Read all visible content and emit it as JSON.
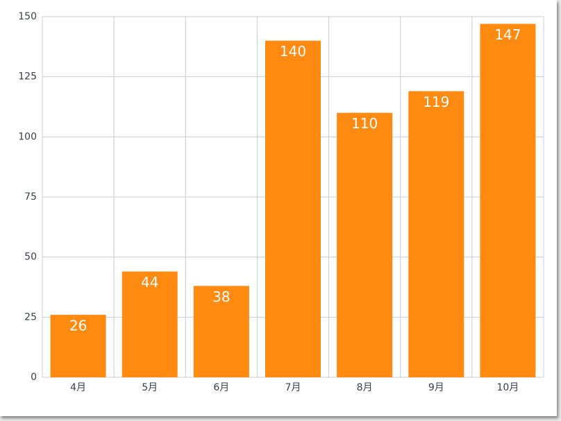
{
  "chart_data": {
    "type": "bar",
    "categories": [
      "4月",
      "5月",
      "6月",
      "7月",
      "8月",
      "9月",
      "10月"
    ],
    "values": [
      26,
      44,
      38,
      140,
      110,
      119,
      147
    ],
    "color": "#ff8a12",
    "ylim": [
      0,
      150
    ],
    "yticks": [
      0,
      25,
      50,
      75,
      100,
      125,
      150
    ],
    "grid": true
  }
}
